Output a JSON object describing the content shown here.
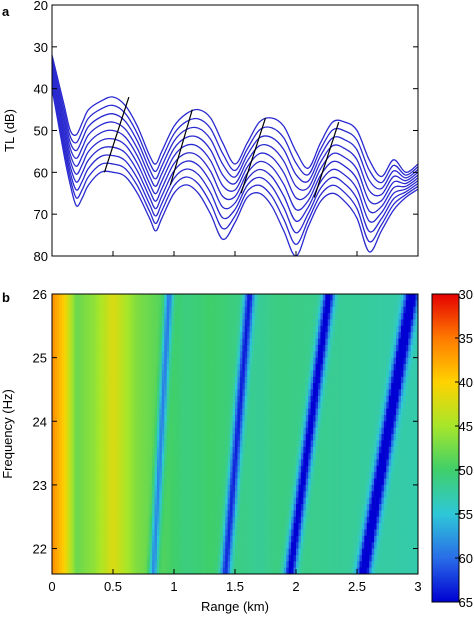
{
  "chart_data": [
    {
      "panel": "a",
      "type": "line",
      "ylabel": "TL (dB)",
      "xlabel": "",
      "xlim": [
        0,
        3
      ],
      "ylim": [
        80,
        20
      ],
      "y_inverted": true,
      "yticks": [
        20,
        30,
        40,
        50,
        60,
        70,
        80
      ],
      "xticks": [
        0,
        0.5,
        1,
        1.5,
        2,
        2.5,
        3
      ],
      "x_tick_labels_shown": false,
      "grid": false,
      "line_color": "#2a2ad0",
      "ridge_color": "#000000",
      "series_count": 10,
      "series": [
        {
          "frequency_hz": 22,
          "x": [
            0,
            0.05,
            0.1,
            0.15,
            0.2,
            0.25,
            0.3,
            0.4,
            0.5,
            0.6,
            0.7,
            0.8,
            0.85,
            0.9,
            1.0,
            1.1,
            1.2,
            1.3,
            1.4,
            1.5,
            1.6,
            1.7,
            1.8,
            1.9,
            2.0,
            2.1,
            2.2,
            2.3,
            2.4,
            2.5,
            2.6,
            2.7,
            2.8,
            2.9,
            3.0
          ],
          "y": [
            40,
            48,
            56,
            63,
            68,
            66,
            63,
            60,
            60,
            61,
            65,
            71,
            74,
            71,
            65,
            63,
            65,
            70,
            76,
            72,
            66,
            65,
            68,
            74,
            80,
            73,
            67,
            65,
            67,
            71,
            79,
            74,
            69,
            66,
            64
          ]
        },
        {
          "frequency_hz": 26,
          "x": [
            0,
            0.05,
            0.1,
            0.15,
            0.2,
            0.25,
            0.3,
            0.4,
            0.5,
            0.6,
            0.7,
            0.8,
            0.85,
            0.9,
            1.0,
            1.1,
            1.2,
            1.3,
            1.4,
            1.5,
            1.6,
            1.7,
            1.8,
            1.9,
            2.0,
            2.1,
            2.2,
            2.3,
            2.4,
            2.5,
            2.6,
            2.7,
            2.8,
            2.9,
            3.0
          ],
          "y": [
            32,
            38,
            44,
            50,
            51,
            48,
            45,
            43,
            42,
            44,
            49,
            56,
            58,
            55,
            49,
            46,
            45,
            47,
            53,
            58,
            53,
            48,
            47,
            49,
            55,
            59,
            53,
            48,
            48,
            50,
            57,
            61,
            57,
            60,
            58
          ]
        }
      ],
      "ridge_lines": [
        {
          "x": [
            0.43,
            0.63
          ],
          "y": [
            60,
            42
          ]
        },
        {
          "x": [
            0.97,
            1.15
          ],
          "y": [
            63,
            45
          ]
        },
        {
          "x": [
            1.55,
            1.75
          ],
          "y": [
            65,
            47
          ]
        },
        {
          "x": [
            2.15,
            2.35
          ],
          "y": [
            66,
            48
          ]
        }
      ]
    },
    {
      "panel": "b",
      "type": "heatmap",
      "xlabel": "Range (km)",
      "ylabel": "Frequency (Hz)",
      "xlim": [
        0,
        3
      ],
      "ylim": [
        21.6,
        26
      ],
      "xticks": [
        0,
        0.5,
        1,
        1.5,
        2,
        2.5,
        3
      ],
      "x_tick_labels": [
        "0",
        "0.5",
        "1",
        "1.5",
        "2",
        "2.5",
        "3"
      ],
      "yticks": [
        22,
        23,
        24,
        25,
        26
      ],
      "y_tick_labels": [
        "22",
        "23",
        "24",
        "25",
        "26"
      ],
      "colorbar": {
        "min": 30,
        "max": 65,
        "reversed": true,
        "ticks": [
          30,
          35,
          40,
          45,
          50,
          55,
          60,
          65
        ],
        "tick_labels": [
          "30",
          "35",
          "40",
          "45",
          "50",
          "55",
          "60",
          "65"
        ],
        "colors_low_to_high": [
          "#e40000",
          "#ff7a00",
          "#ffd200",
          "#a6e62a",
          "#3fcf6a",
          "#2ec8d8",
          "#2a6de8",
          "#0000d2"
        ]
      },
      "values_description_omitted": true,
      "null_bands": [
        {
          "x_at_f_min": 0.83,
          "x_at_f_max": 0.96
        },
        {
          "x_at_f_min": 1.42,
          "x_at_f_max": 1.62
        },
        {
          "x_at_f_min": 1.95,
          "x_at_f_max": 2.27
        },
        {
          "x_at_f_min": 2.55,
          "x_at_f_max": 2.95
        }
      ],
      "baseline_tl": [
        {
          "x": 0,
          "tl": 36
        },
        {
          "x": 0.1,
          "tl": 40
        },
        {
          "x": 0.2,
          "tl": 48
        },
        {
          "x": 0.35,
          "tl": 46
        },
        {
          "x": 0.5,
          "tl": 42
        },
        {
          "x": 0.7,
          "tl": 47
        },
        {
          "x": 1.1,
          "tl": 51
        },
        {
          "x": 1.3,
          "tl": 50
        },
        {
          "x": 1.7,
          "tl": 52
        },
        {
          "x": 1.85,
          "tl": 51
        },
        {
          "x": 2.4,
          "tl": 52
        },
        {
          "x": 3.0,
          "tl": 53
        }
      ]
    }
  ]
}
